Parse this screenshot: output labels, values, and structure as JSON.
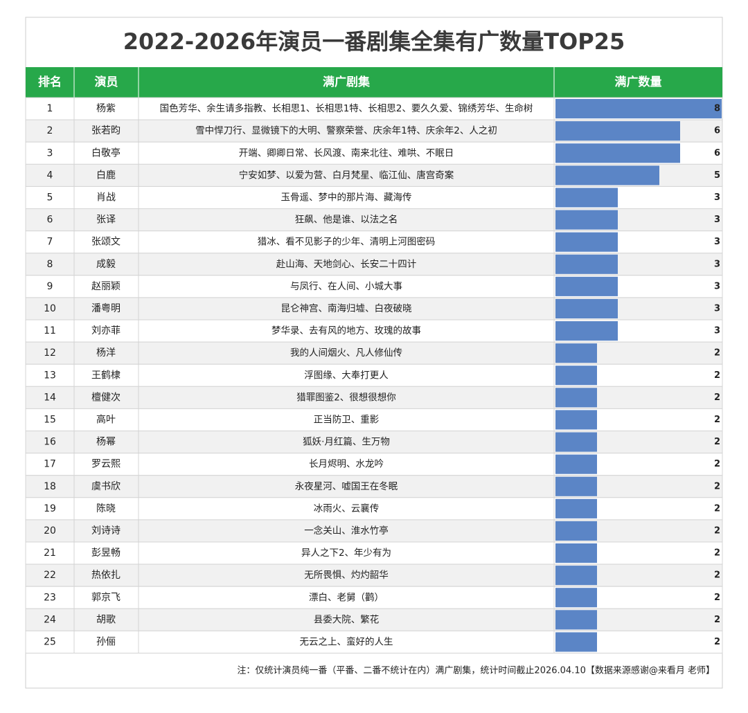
{
  "title": "2022-2026年演员一番剧集全集有广数量TOP25",
  "table": {
    "headers": [
      "排名",
      "演员",
      "满广剧集",
      "满广数量"
    ],
    "rows": [
      [
        1,
        "杨紫",
        "国色芳华、余生请多指教、长相思1、长相思1特、长相思2、要久久爱、锦绣芳华、生命树",
        8
      ],
      [
        2,
        "张若昀",
        "雪中悍刀行、显微镜下的大明、警察荣誉、庆余年1特、庆余年2、人之初",
        6
      ],
      [
        3,
        "白敬亭",
        "开端、卿卿日常、长风渡、南来北往、难哄、不眠日",
        6
      ],
      [
        4,
        "白鹿",
        "宁安如梦、以爱为营、白月梵星、临江仙、唐宫奇案",
        5
      ],
      [
        5,
        "肖战",
        "玉骨遥、梦中的那片海、藏海传",
        3
      ],
      [
        6,
        "张译",
        "狂飙、他是谁、以法之名",
        3
      ],
      [
        7,
        "张颂文",
        "猎冰、看不见影子的少年、清明上河图密码",
        3
      ],
      [
        8,
        "成毅",
        "赴山海、天地剑心、长安二十四计",
        3
      ],
      [
        9,
        "赵丽颖",
        "与凤行、在人间、小城大事",
        3
      ],
      [
        10,
        "潘粤明",
        "昆仑神宫、南海归墟、白夜破晓",
        3
      ],
      [
        11,
        "刘亦菲",
        "梦华录、去有风的地方、玫瑰的故事",
        3
      ],
      [
        12,
        "杨洋",
        "我的人间烟火、凡人修仙传",
        2
      ],
      [
        13,
        "王鹤棣",
        "浮图缘、大奉打更人",
        2
      ],
      [
        14,
        "檀健次",
        "猎罪图鉴2、很想很想你",
        2
      ],
      [
        15,
        "高叶",
        "正当防卫、重影",
        2
      ],
      [
        16,
        "杨幂",
        "狐妖·月红篇、生万物",
        2
      ],
      [
        17,
        "罗云熙",
        "长月烬明、水龙吟",
        2
      ],
      [
        18,
        "虞书欣",
        "永夜星河、嘘国王在冬眠",
        2
      ],
      [
        19,
        "陈晓",
        "冰雨火、云襄传",
        2
      ],
      [
        20,
        "刘诗诗",
        "一念关山、淮水竹亭",
        2
      ],
      [
        21,
        "彭昱畅",
        "异人之下2、年少有为",
        2
      ],
      [
        22,
        "热依扎",
        "无所畏惧、灼灼韶华",
        2
      ],
      [
        23,
        "郭京飞",
        "漂白、老舅（鹳）",
        2
      ],
      [
        24,
        "胡歌",
        "县委大院、繁花",
        2
      ],
      [
        25,
        "孙俪",
        "无云之上、蛮好的人生",
        2
      ]
    ]
  },
  "note": "注：仅统计演员纯一番（平番、二番不统计在内）满广剧集，统计时间截止2026.04.10【数据来源感谢@来看月 老师】"
}
